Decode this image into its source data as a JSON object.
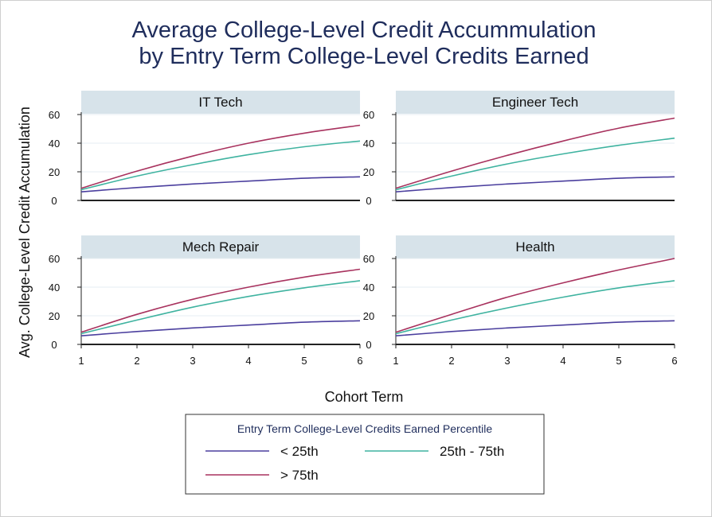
{
  "chart_data": {
    "type": "line",
    "title_lines": [
      "Average College-Level Credit Accummulation",
      "by Entry Term College-Level Credits Earned"
    ],
    "xlabel": "Cohort Term",
    "ylabel": "Avg. College-Level Credit Accumulation",
    "x": [
      1,
      2,
      3,
      4,
      5,
      6
    ],
    "xticks": [
      1,
      2,
      3,
      4,
      5,
      6
    ],
    "ylim": [
      0,
      60
    ],
    "yticks": [
      0,
      20,
      40,
      60
    ],
    "grid": true,
    "legend": {
      "title": "Entry Term College-Level Credits Earned Percentile",
      "position": "bottom",
      "entries": [
        {
          "label": "< 25th",
          "color": "#4b3f9e"
        },
        {
          "label": "25th - 75th",
          "color": "#3fb3a0"
        },
        {
          "label": "> 75th",
          "color": "#a8325e"
        }
      ]
    },
    "panels": [
      {
        "title": "IT Tech",
        "series": [
          {
            "label": "< 25th",
            "color": "#4b3f9e",
            "values": [
              6,
              9,
              11.5,
              13.5,
              15.5,
              16.5
            ]
          },
          {
            "label": "25th - 75th",
            "color": "#3fb3a0",
            "values": [
              7.5,
              17,
              25,
              32,
              37.5,
              41.5
            ]
          },
          {
            "label": "> 75th",
            "color": "#a8325e",
            "values": [
              8.5,
              20.5,
              31,
              40,
              47,
              52.5
            ]
          }
        ]
      },
      {
        "title": "Engineer Tech",
        "series": [
          {
            "label": "< 25th",
            "color": "#4b3f9e",
            "values": [
              6,
              9,
              11.5,
              13.5,
              15.5,
              16.5
            ]
          },
          {
            "label": "25th - 75th",
            "color": "#3fb3a0",
            "values": [
              7.5,
              17,
              25.5,
              32.5,
              38.5,
              43.5
            ]
          },
          {
            "label": "> 75th",
            "color": "#a8325e",
            "values": [
              8.5,
              20.5,
              31.5,
              41.5,
              50.5,
              57.5
            ]
          }
        ]
      },
      {
        "title": "Mech Repair",
        "series": [
          {
            "label": "< 25th",
            "color": "#4b3f9e",
            "values": [
              6,
              9,
              11.5,
              13.5,
              15.5,
              16.5
            ]
          },
          {
            "label": "25th - 75th",
            "color": "#3fb3a0",
            "values": [
              7.5,
              17,
              26,
              33.5,
              39.5,
              44.5
            ]
          },
          {
            "label": "> 75th",
            "color": "#a8325e",
            "values": [
              8.5,
              21,
              31.5,
              40,
              47,
              52.5
            ]
          }
        ]
      },
      {
        "title": "Health",
        "series": [
          {
            "label": "< 25th",
            "color": "#4b3f9e",
            "values": [
              6,
              9,
              11.5,
              13.5,
              15.5,
              16.5
            ]
          },
          {
            "label": "25th - 75th",
            "color": "#3fb3a0",
            "values": [
              7.5,
              17,
              25.5,
              33,
              39.5,
              44.5
            ]
          },
          {
            "label": "> 75th",
            "color": "#a8325e",
            "values": [
              8.5,
              21,
              33,
              43,
              52,
              60
            ]
          }
        ]
      }
    ]
  }
}
